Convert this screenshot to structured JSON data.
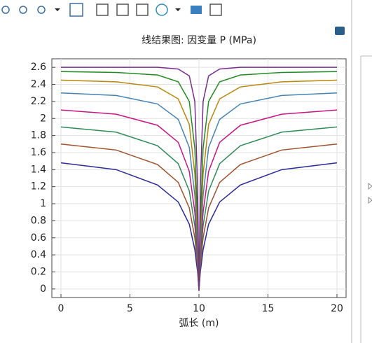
{
  "chart_data": {
    "type": "line",
    "title": "线结果图: 因变量 P (MPa)",
    "x_label": "弧长 (m)",
    "x": [
      0,
      4,
      7,
      8.5,
      9.3,
      9.7,
      9.9,
      10,
      10.1,
      10.3,
      10.7,
      11.5,
      13,
      16,
      20
    ],
    "series": [
      {
        "color": "#2a2a9a",
        "values": [
          1.48,
          1.4,
          1.22,
          1.02,
          0.76,
          0.46,
          0.2,
          -0.02,
          0.2,
          0.46,
          0.76,
          1.02,
          1.22,
          1.4,
          1.48
        ]
      },
      {
        "color": "#a0522d",
        "values": [
          1.7,
          1.63,
          1.46,
          1.25,
          0.95,
          0.6,
          0.27,
          -0.02,
          0.27,
          0.6,
          0.95,
          1.25,
          1.46,
          1.63,
          1.7
        ]
      },
      {
        "color": "#2e8b57",
        "values": [
          1.9,
          1.84,
          1.68,
          1.47,
          1.15,
          0.74,
          0.33,
          -0.02,
          0.33,
          0.74,
          1.15,
          1.47,
          1.68,
          1.84,
          1.9
        ]
      },
      {
        "color": "#c71585",
        "values": [
          2.1,
          2.05,
          1.92,
          1.72,
          1.38,
          0.9,
          0.4,
          -0.02,
          0.4,
          0.9,
          1.38,
          1.72,
          1.92,
          2.05,
          2.1
        ]
      },
      {
        "color": "#4682b4",
        "values": [
          2.3,
          2.27,
          2.17,
          1.99,
          1.66,
          1.1,
          0.5,
          -0.02,
          0.5,
          1.1,
          1.66,
          1.99,
          2.17,
          2.27,
          2.3
        ]
      },
      {
        "color": "#b8860b",
        "values": [
          2.45,
          2.43,
          2.37,
          2.23,
          1.93,
          1.35,
          0.62,
          -0.02,
          0.62,
          1.35,
          1.93,
          2.23,
          2.37,
          2.43,
          2.45
        ]
      },
      {
        "color": "#228b22",
        "values": [
          2.55,
          2.54,
          2.51,
          2.43,
          2.2,
          1.65,
          0.8,
          -0.02,
          0.8,
          1.65,
          2.2,
          2.43,
          2.51,
          2.54,
          2.55
        ]
      },
      {
        "color": "#7b2c8f",
        "values": [
          2.6,
          2.6,
          2.6,
          2.58,
          2.5,
          2.2,
          1.2,
          -0.02,
          1.2,
          2.2,
          2.5,
          2.58,
          2.6,
          2.6,
          2.6
        ]
      }
    ],
    "xlim": [
      -0.66,
      20.66
    ],
    "ylim": [
      -0.1,
      2.7
    ],
    "xticks": [
      0,
      5,
      10,
      15,
      20
    ],
    "yticks": [
      0,
      0.2,
      0.4,
      0.6,
      0.8,
      1,
      1.2,
      1.4,
      1.6,
      1.8,
      2,
      2.2,
      2.4,
      2.6
    ],
    "grid": true
  }
}
